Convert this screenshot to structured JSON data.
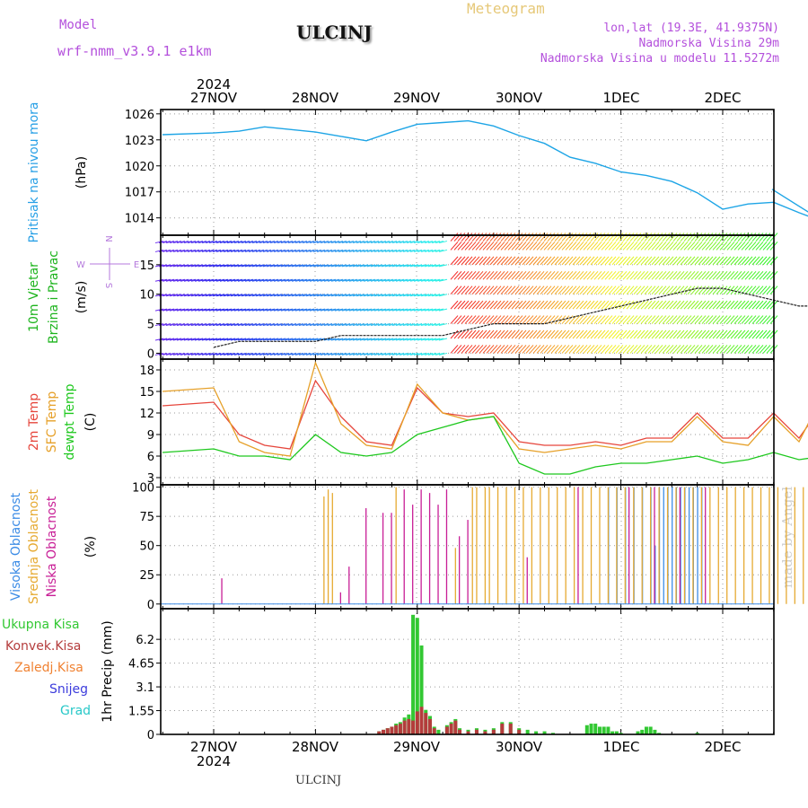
{
  "header": {
    "model_label": "Model",
    "model_name": "wrf-nmm_v3.9.1  e1km",
    "station": "ULCINJ",
    "meteogram": "Meteogram",
    "lonlat": "lon,lat (19.3E, 41.9375N)",
    "elevation": "Nadmorska Visina 29m",
    "model_elevation": "Nadmorska Visina u modelu 11.5272m"
  },
  "footer": {
    "station": "ULCINJ",
    "signature": "made by Angel"
  },
  "colors": {
    "pressure": "#1ea5e6",
    "temp2m": "#e6463c",
    "sfc": "#e6a028",
    "dewpt": "#1ec81e",
    "high_cloud": "#3c8ce6",
    "mid_cloud": "#e6aa32",
    "low_cloud": "#c81e96",
    "total_precip": "#32c832",
    "conv_precip": "#b43c3c",
    "frozen_precip": "#f08232",
    "snow": "#3c3cdc",
    "graupel": "#28c8c8",
    "ylabel_pressure": "#28a0e6",
    "ylabel_wind": "#1eb41e",
    "compass": "#b478dc",
    "header_purple": "#b450dc",
    "meteogram": "#e6c878"
  },
  "chart_data": [
    {
      "type": "line",
      "panel": "pressure",
      "title_lines": [
        "Pritisak na nivou mora"
      ],
      "unit": "(hPa)",
      "ylim": [
        1012,
        1026.5
      ],
      "yticks": [
        1014,
        1017,
        1020,
        1023,
        1026
      ],
      "xlim": [
        0,
        144
      ],
      "x": [
        0,
        6,
        12,
        18,
        24,
        30,
        36,
        42,
        48,
        54,
        60,
        66,
        72,
        78,
        84,
        90,
        96,
        102,
        108,
        114,
        120,
        126,
        132,
        138,
        144
      ],
      "series": [
        {
          "name": "",
          "values": [
            1023.8,
            1024.0,
            1024.5,
            1024.2,
            1023.9,
            1023.4,
            1022.9,
            1023.9,
            1024.8,
            1025.0,
            1025.2,
            1024.6,
            1023.5,
            1022.6,
            1021.0,
            1020.3,
            1019.3,
            1018.9,
            1018.2,
            1016.9,
            1015.0,
            1015.6,
            1015.8,
            1014.6,
            1013.5
          ]
        }
      ],
      "note_x": "x values are hours from 27NOV 00:00 scaled on panel 27NOV..2DEC"
    },
    {
      "type": "line",
      "panel": "wind",
      "title_lines": [
        "10m Vjetar",
        "Brzina i Pravac"
      ],
      "unit": "(m/s)",
      "compass_labels": [
        "N",
        "E",
        "S",
        "W"
      ],
      "ylim": [
        -1,
        20
      ],
      "yticks": [
        0,
        5,
        10,
        15
      ],
      "x": [
        0,
        6,
        12,
        18,
        24,
        30,
        36,
        42,
        48,
        54,
        60,
        66,
        72,
        78,
        84,
        90,
        96,
        102,
        108,
        114,
        120,
        126,
        132,
        138,
        144
      ],
      "series": [
        {
          "name": "",
          "values": [
            1,
            2,
            2,
            2,
            2,
            3,
            3,
            3,
            3,
            3,
            4,
            5,
            5,
            5,
            6,
            7,
            8,
            9,
            10,
            11,
            11,
            10,
            9,
            8,
            8
          ]
        }
      ]
    },
    {
      "type": "line",
      "panel": "temperature",
      "title_lines": [
        "2m Temp",
        "SFC Temp",
        "dewpt Temp"
      ],
      "unit": "(C)",
      "ylim": [
        2,
        19.5
      ],
      "yticks": [
        3,
        6,
        9,
        12,
        15,
        18
      ],
      "x": [
        0,
        6,
        12,
        18,
        24,
        30,
        36,
        42,
        48,
        54,
        60,
        66,
        72,
        78,
        84,
        90,
        96,
        102,
        108,
        114,
        120,
        126,
        132,
        138,
        144
      ],
      "series": [
        {
          "name": "2m Temp",
          "values": [
            13.5,
            9.0,
            7.5,
            7.0,
            16.5,
            11.5,
            8.0,
            7.5,
            15.5,
            12.0,
            11.5,
            12.0,
            8.0,
            7.5,
            7.5,
            8.0,
            7.5,
            8.5,
            8.5,
            12.0,
            8.5,
            8.5,
            12.0,
            8.5,
            13.5
          ]
        },
        {
          "name": "SFC Temp",
          "values": [
            15.5,
            8.0,
            6.5,
            6.0,
            19.0,
            10.5,
            7.5,
            7.0,
            16.0,
            12.0,
            11.0,
            11.5,
            7.0,
            6.5,
            7.0,
            7.5,
            7.0,
            8.0,
            8.0,
            11.5,
            8.0,
            7.5,
            11.5,
            8.0,
            15.0
          ]
        },
        {
          "name": "dewpt Temp",
          "values": [
            7.0,
            6.0,
            6.0,
            5.5,
            9.0,
            6.5,
            6.0,
            6.5,
            9.0,
            10.0,
            11.0,
            11.5,
            5.0,
            3.5,
            3.5,
            4.5,
            5.0,
            5.0,
            5.5,
            6.0,
            5.0,
            5.5,
            6.5,
            5.5,
            6.0
          ]
        }
      ]
    },
    {
      "type": "bar",
      "panel": "clouds",
      "title_lines": [
        "Visoka Oblacnost",
        "Srednja Oblacnost",
        "Niska Oblacnost"
      ],
      "unit": "(%)",
      "ylim": [
        -4,
        102
      ],
      "yticks": [
        0,
        25,
        50,
        75,
        100
      ],
      "series": [
        {
          "name": "Visoka Oblacnost",
          "x": [
            93,
            95,
            97,
            99,
            101,
            103,
            104,
            105,
            106,
            107,
            108,
            109,
            110,
            111,
            112,
            113,
            114,
            115
          ],
          "values": [
            100,
            100,
            100,
            100,
            100,
            100,
            50,
            100,
            100,
            100,
            100,
            100,
            100,
            100,
            100,
            100,
            100,
            100
          ]
        },
        {
          "name": "Srednja Oblacnost",
          "x": [
            26,
            27,
            28,
            43,
            57,
            61,
            62,
            64,
            65,
            67,
            69,
            71,
            73,
            75,
            77,
            79,
            81,
            83,
            85,
            87,
            89,
            91,
            93,
            95,
            97,
            99,
            101,
            103,
            105,
            107,
            109,
            111,
            113,
            115,
            117,
            119,
            121,
            123,
            125,
            127,
            129,
            131,
            133,
            135,
            137,
            139,
            141,
            143
          ],
          "values": [
            92,
            98,
            95,
            100,
            48,
            100,
            100,
            100,
            100,
            100,
            100,
            100,
            100,
            100,
            100,
            100,
            100,
            100,
            100,
            100,
            100,
            100,
            100,
            100,
            100,
            100,
            100,
            100,
            100,
            100,
            100,
            100,
            100,
            100,
            100,
            100,
            100,
            100,
            100,
            100,
            100,
            100,
            100,
            100,
            100,
            100,
            100,
            62
          ]
        },
        {
          "name": "Niska Oblacnost",
          "x": [
            2,
            30,
            32,
            36,
            40,
            42,
            45,
            47,
            49,
            51,
            53,
            55,
            58,
            60,
            74,
            86,
            98,
            104,
            110,
            116
          ],
          "values": [
            22,
            10,
            32,
            82,
            78,
            78,
            98,
            85,
            98,
            95,
            85,
            98,
            58,
            72,
            40,
            100,
            100,
            100,
            100,
            100
          ]
        }
      ]
    },
    {
      "type": "bar",
      "panel": "precip",
      "title_lines": [
        "1hr Precip (mm)"
      ],
      "legend": [
        "Ukupna  Kisa",
        "Konvek.Kisa",
        "Zaledj.Kisa",
        "Snijeg",
        "Grad"
      ],
      "ylim": [
        0,
        8.2
      ],
      "yticks": [
        0,
        1.55,
        3.1,
        4.65,
        6.2
      ],
      "series": [
        {
          "name": "Ukupna  Kisa",
          "x": [
            39,
            40,
            41,
            42,
            43,
            44,
            45,
            46,
            47,
            48,
            49,
            50,
            51,
            52,
            53,
            55,
            56,
            57,
            58,
            60,
            62,
            64,
            66,
            68,
            70,
            72,
            74,
            76,
            78,
            80,
            88,
            89,
            90,
            91,
            92,
            93,
            94,
            95,
            96,
            100,
            101,
            102,
            103,
            104,
            105,
            114
          ],
          "values": [
            0.2,
            0.3,
            0.4,
            0.5,
            0.7,
            0.8,
            1.1,
            1.3,
            7.8,
            7.6,
            5.8,
            1.6,
            1.2,
            0.5,
            0.3,
            0.6,
            0.8,
            1.0,
            0.4,
            0.3,
            0.4,
            0.3,
            0.4,
            0.8,
            0.8,
            0.4,
            0.3,
            0.2,
            0.2,
            0.1,
            0.6,
            0.7,
            0.7,
            0.5,
            0.5,
            0.5,
            0.2,
            0.2,
            0.1,
            0.2,
            0.3,
            0.5,
            0.5,
            0.3,
            0.1,
            0.1
          ]
        },
        {
          "name": "Konvek.Kisa",
          "x": [
            39,
            40,
            41,
            42,
            43,
            44,
            45,
            46,
            47,
            48,
            49,
            50,
            51,
            52,
            55,
            56,
            57,
            58,
            60,
            62,
            64,
            66,
            68,
            70,
            72
          ],
          "values": [
            0.2,
            0.3,
            0.4,
            0.5,
            0.6,
            0.7,
            0.9,
            1.0,
            0.9,
            1.5,
            1.8,
            1.4,
            1.0,
            0.4,
            0.5,
            0.7,
            0.9,
            0.3,
            0.2,
            0.3,
            0.2,
            0.3,
            0.7,
            0.7,
            0.3
          ]
        }
      ]
    }
  ],
  "x_axis": {
    "top_labels": [
      "27NOV",
      "28NOV",
      "29NOV",
      "30NOV",
      "1DEC",
      "2DEC"
    ],
    "top_year": "2024",
    "bottom_labels": [
      "27NOV",
      "28NOV",
      "29NOV",
      "30NOV",
      "1DEC",
      "2DEC"
    ],
    "bottom_year": "2024"
  }
}
